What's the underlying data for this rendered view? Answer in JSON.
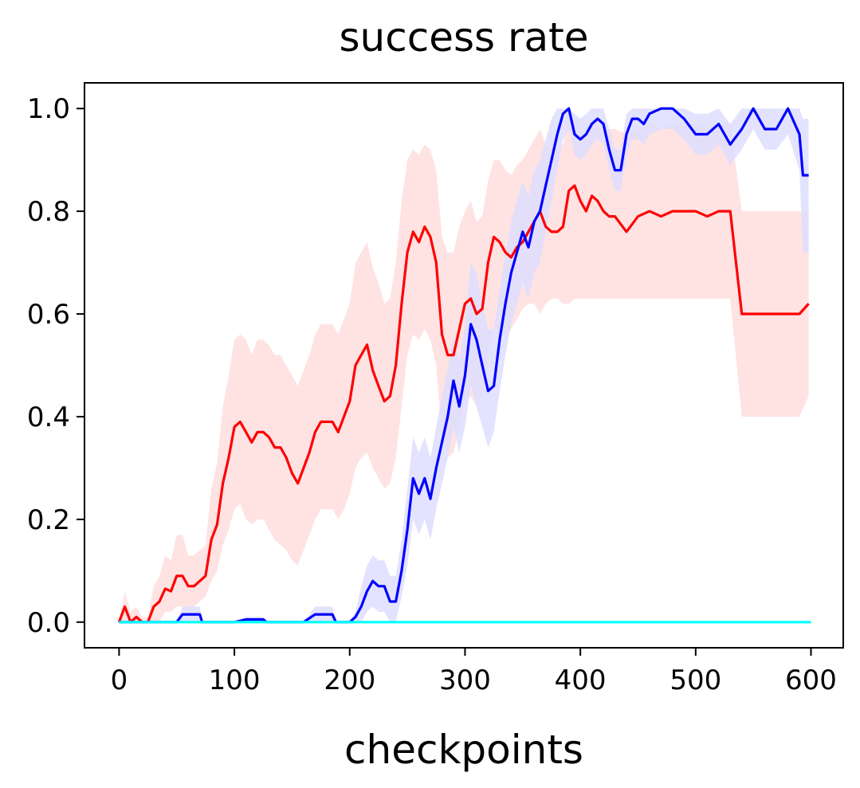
{
  "chart_data": {
    "type": "line",
    "title": "success rate",
    "xlabel": "checkpoints",
    "ylabel": "",
    "xlim": [
      -30,
      628
    ],
    "ylim": [
      -0.05,
      1.05
    ],
    "xticks": [
      0,
      100,
      200,
      300,
      400,
      500,
      600
    ],
    "xtick_labels": [
      "0",
      "100",
      "200",
      "300",
      "400",
      "500",
      "600"
    ],
    "yticks": [
      0.0,
      0.2,
      0.4,
      0.6,
      0.8,
      1.0
    ],
    "ytick_labels": [
      "0.0",
      "0.2",
      "0.4",
      "0.6",
      "0.8",
      "1.0"
    ],
    "grid": false,
    "legend": "none",
    "series": [
      {
        "color": "#ff0000",
        "band_color": "#ffdede",
        "x": [
          0,
          5,
          10,
          15,
          20,
          25,
          30,
          35,
          40,
          45,
          50,
          55,
          60,
          65,
          70,
          75,
          80,
          85,
          90,
          95,
          100,
          105,
          110,
          115,
          120,
          125,
          130,
          135,
          140,
          145,
          150,
          155,
          160,
          165,
          170,
          175,
          180,
          185,
          190,
          195,
          200,
          205,
          210,
          215,
          220,
          225,
          230,
          235,
          240,
          245,
          250,
          255,
          260,
          265,
          270,
          275,
          280,
          285,
          290,
          295,
          300,
          305,
          310,
          315,
          320,
          325,
          330,
          335,
          340,
          345,
          350,
          355,
          360,
          365,
          370,
          375,
          380,
          385,
          390,
          395,
          400,
          405,
          410,
          415,
          420,
          425,
          430,
          440,
          450,
          460,
          470,
          480,
          490,
          500,
          510,
          520,
          530,
          540,
          550,
          560,
          570,
          580,
          590,
          598
        ],
        "y": [
          0.0,
          0.03,
          0.0,
          0.01,
          0.0,
          0.0,
          0.03,
          0.04,
          0.065,
          0.06,
          0.09,
          0.09,
          0.07,
          0.07,
          0.08,
          0.09,
          0.16,
          0.19,
          0.27,
          0.32,
          0.38,
          0.39,
          0.37,
          0.35,
          0.37,
          0.37,
          0.36,
          0.34,
          0.34,
          0.32,
          0.29,
          0.27,
          0.3,
          0.33,
          0.37,
          0.39,
          0.39,
          0.39,
          0.37,
          0.4,
          0.43,
          0.5,
          0.52,
          0.54,
          0.49,
          0.46,
          0.43,
          0.44,
          0.5,
          0.62,
          0.72,
          0.76,
          0.74,
          0.77,
          0.75,
          0.7,
          0.56,
          0.52,
          0.52,
          0.57,
          0.62,
          0.63,
          0.6,
          0.61,
          0.7,
          0.75,
          0.74,
          0.72,
          0.71,
          0.73,
          0.74,
          0.76,
          0.78,
          0.8,
          0.77,
          0.76,
          0.76,
          0.77,
          0.84,
          0.85,
          0.82,
          0.8,
          0.83,
          0.82,
          0.8,
          0.79,
          0.79,
          0.76,
          0.79,
          0.8,
          0.79,
          0.8,
          0.8,
          0.8,
          0.79,
          0.8,
          0.8,
          0.6,
          0.6,
          0.6,
          0.6,
          0.6,
          0.6,
          0.62
        ],
        "lower": [
          0.0,
          0.0,
          0.0,
          0.0,
          0.0,
          0.0,
          0.0,
          0.0,
          0.02,
          0.02,
          0.03,
          0.03,
          0.03,
          0.03,
          0.04,
          0.05,
          0.08,
          0.1,
          0.15,
          0.18,
          0.22,
          0.23,
          0.2,
          0.19,
          0.2,
          0.2,
          0.18,
          0.16,
          0.15,
          0.14,
          0.12,
          0.11,
          0.14,
          0.17,
          0.2,
          0.22,
          0.22,
          0.22,
          0.2,
          0.22,
          0.25,
          0.3,
          0.32,
          0.33,
          0.3,
          0.28,
          0.26,
          0.27,
          0.32,
          0.42,
          0.52,
          0.56,
          0.55,
          0.57,
          0.55,
          0.5,
          0.36,
          0.32,
          0.33,
          0.38,
          0.43,
          0.44,
          0.42,
          0.44,
          0.52,
          0.57,
          0.57,
          0.56,
          0.57,
          0.59,
          0.61,
          0.62,
          0.62,
          0.6,
          0.62,
          0.63,
          0.63,
          0.62,
          0.62,
          0.63,
          0.63,
          0.63,
          0.63,
          0.63,
          0.63,
          0.63,
          0.63,
          0.63,
          0.63,
          0.63,
          0.63,
          0.63,
          0.63,
          0.63,
          0.63,
          0.63,
          0.63,
          0.4,
          0.4,
          0.4,
          0.4,
          0.4,
          0.4,
          0.44
        ],
        "upper": [
          0.0,
          0.06,
          0.02,
          0.03,
          0.01,
          0.01,
          0.07,
          0.09,
          0.13,
          0.12,
          0.17,
          0.17,
          0.13,
          0.13,
          0.14,
          0.15,
          0.26,
          0.31,
          0.42,
          0.48,
          0.55,
          0.56,
          0.55,
          0.52,
          0.55,
          0.55,
          0.54,
          0.52,
          0.52,
          0.5,
          0.48,
          0.46,
          0.49,
          0.52,
          0.56,
          0.58,
          0.58,
          0.58,
          0.56,
          0.59,
          0.62,
          0.7,
          0.72,
          0.74,
          0.69,
          0.66,
          0.62,
          0.63,
          0.7,
          0.82,
          0.9,
          0.92,
          0.91,
          0.93,
          0.92,
          0.88,
          0.75,
          0.72,
          0.72,
          0.77,
          0.8,
          0.82,
          0.78,
          0.79,
          0.86,
          0.9,
          0.9,
          0.88,
          0.87,
          0.89,
          0.9,
          0.92,
          0.94,
          0.96,
          0.93,
          0.92,
          0.92,
          0.93,
          0.98,
          0.98,
          0.96,
          0.95,
          0.97,
          0.96,
          0.95,
          0.96,
          0.96,
          0.95,
          0.96,
          0.97,
          0.96,
          0.97,
          0.97,
          0.97,
          0.96,
          0.97,
          0.97,
          0.8,
          0.8,
          0.8,
          0.8,
          0.8,
          0.8,
          0.8
        ]
      },
      {
        "color": "#0000ff",
        "band_color": "#dedeff",
        "x": [
          0,
          50,
          55,
          60,
          70,
          72,
          80,
          100,
          110,
          115,
          125,
          128,
          140,
          160,
          170,
          175,
          185,
          188,
          200,
          205,
          210,
          215,
          220,
          225,
          230,
          235,
          240,
          245,
          250,
          255,
          260,
          265,
          270,
          275,
          280,
          285,
          290,
          295,
          300,
          305,
          310,
          315,
          320,
          325,
          330,
          335,
          340,
          345,
          350,
          355,
          360,
          365,
          370,
          375,
          380,
          385,
          390,
          395,
          400,
          405,
          410,
          415,
          420,
          425,
          430,
          435,
          440,
          445,
          450,
          455,
          460,
          470,
          480,
          490,
          500,
          510,
          520,
          530,
          540,
          550,
          560,
          570,
          580,
          590,
          593,
          598
        ],
        "y": [
          0.0,
          0.0,
          0.015,
          0.015,
          0.015,
          0.0,
          0.0,
          0.0,
          0.005,
          0.005,
          0.005,
          0.0,
          0.0,
          0.0,
          0.015,
          0.015,
          0.015,
          0.0,
          0.0,
          0.01,
          0.03,
          0.06,
          0.08,
          0.07,
          0.07,
          0.04,
          0.04,
          0.1,
          0.18,
          0.28,
          0.25,
          0.28,
          0.24,
          0.3,
          0.35,
          0.4,
          0.47,
          0.42,
          0.48,
          0.58,
          0.55,
          0.5,
          0.45,
          0.46,
          0.55,
          0.62,
          0.68,
          0.72,
          0.76,
          0.73,
          0.78,
          0.8,
          0.85,
          0.9,
          0.95,
          0.99,
          1.0,
          0.95,
          0.94,
          0.95,
          0.97,
          0.98,
          0.97,
          0.92,
          0.88,
          0.88,
          0.95,
          0.98,
          0.98,
          0.97,
          0.99,
          1.0,
          1.0,
          0.98,
          0.95,
          0.95,
          0.97,
          0.93,
          0.96,
          1.0,
          0.96,
          0.96,
          1.0,
          0.95,
          0.87,
          0.87
        ],
        "lower": [
          0.0,
          0.0,
          0.0,
          0.0,
          0.0,
          0.0,
          0.0,
          0.0,
          0.0,
          0.0,
          0.0,
          0.0,
          0.0,
          0.0,
          0.0,
          0.0,
          0.0,
          0.0,
          0.0,
          0.0,
          0.0,
          0.02,
          0.03,
          0.02,
          0.02,
          0.0,
          0.0,
          0.05,
          0.11,
          0.2,
          0.17,
          0.2,
          0.16,
          0.22,
          0.27,
          0.32,
          0.38,
          0.33,
          0.38,
          0.46,
          0.42,
          0.38,
          0.34,
          0.37,
          0.45,
          0.52,
          0.58,
          0.62,
          0.66,
          0.63,
          0.68,
          0.7,
          0.76,
          0.82,
          0.88,
          0.94,
          0.96,
          0.91,
          0.9,
          0.91,
          0.93,
          0.94,
          0.93,
          0.88,
          0.84,
          0.84,
          0.91,
          0.94,
          0.94,
          0.93,
          0.95,
          0.96,
          0.96,
          0.94,
          0.91,
          0.91,
          0.93,
          0.89,
          0.92,
          0.96,
          0.92,
          0.92,
          0.95,
          0.88,
          0.72,
          0.72
        ],
        "upper": [
          0.0,
          0.0,
          0.03,
          0.03,
          0.03,
          0.0,
          0.0,
          0.0,
          0.01,
          0.01,
          0.01,
          0.0,
          0.0,
          0.0,
          0.03,
          0.03,
          0.03,
          0.0,
          0.0,
          0.02,
          0.07,
          0.11,
          0.13,
          0.12,
          0.12,
          0.09,
          0.09,
          0.16,
          0.26,
          0.36,
          0.33,
          0.36,
          0.32,
          0.38,
          0.44,
          0.49,
          0.56,
          0.51,
          0.58,
          0.7,
          0.68,
          0.62,
          0.57,
          0.57,
          0.65,
          0.72,
          0.78,
          0.82,
          0.86,
          0.83,
          0.88,
          0.9,
          0.94,
          0.98,
          1.0,
          1.0,
          1.0,
          0.99,
          0.98,
          0.99,
          1.0,
          1.0,
          1.0,
          0.96,
          0.92,
          0.92,
          0.99,
          1.0,
          1.0,
          1.0,
          1.0,
          1.0,
          1.0,
          1.0,
          0.99,
          0.99,
          1.0,
          0.97,
          1.0,
          1.0,
          1.0,
          1.0,
          1.0,
          1.0,
          0.98,
          0.98
        ]
      },
      {
        "color": "#00ffff",
        "band_color": "#ccffff",
        "x": [
          0,
          600
        ],
        "y": [
          0.0,
          0.0
        ],
        "lower": [
          0.0,
          0.0
        ],
        "upper": [
          0.0,
          0.0
        ]
      }
    ]
  }
}
